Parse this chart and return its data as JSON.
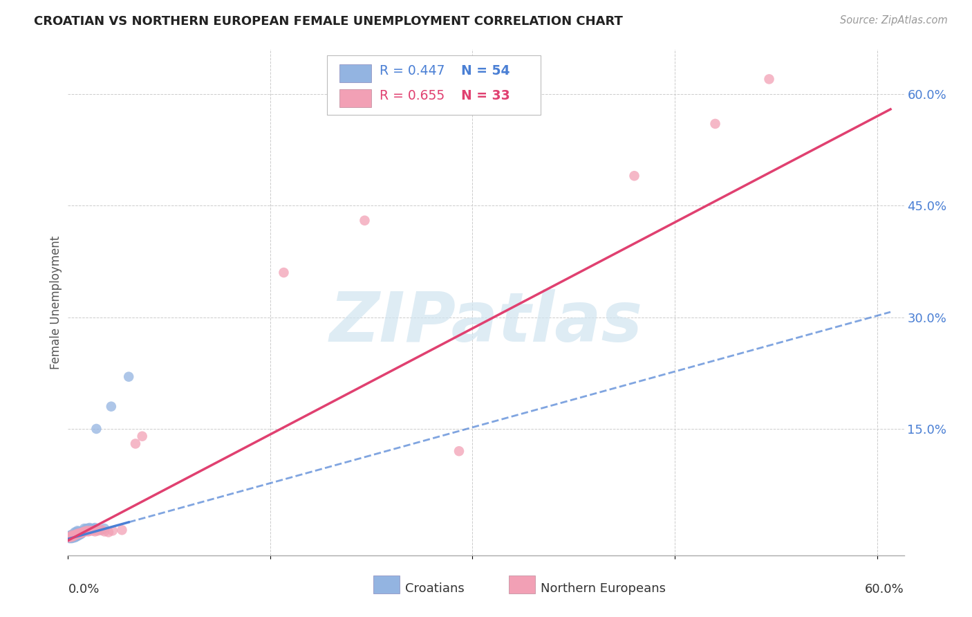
{
  "title": "CROATIAN VS NORTHERN EUROPEAN FEMALE UNEMPLOYMENT CORRELATION CHART",
  "source": "Source: ZipAtlas.com",
  "ylabel": "Female Unemployment",
  "right_yticks": [
    "60.0%",
    "45.0%",
    "30.0%",
    "15.0%"
  ],
  "right_ytick_vals": [
    0.6,
    0.45,
    0.3,
    0.15
  ],
  "xlim": [
    0.0,
    0.62
  ],
  "ylim": [
    -0.02,
    0.66
  ],
  "croatian_R": "0.447",
  "croatian_N": "54",
  "northern_R": "0.655",
  "northern_N": "33",
  "croatian_scatter_color": "#93b4e1",
  "northern_scatter_color": "#f2a0b5",
  "trendline_blue": "#4a7fd4",
  "trendline_pink": "#e04070",
  "background_color": "#ffffff",
  "grid_color": "#cccccc",
  "cro_x": [
    0.001,
    0.001,
    0.001,
    0.001,
    0.002,
    0.002,
    0.002,
    0.002,
    0.002,
    0.003,
    0.003,
    0.003,
    0.003,
    0.003,
    0.003,
    0.004,
    0.004,
    0.004,
    0.004,
    0.005,
    0.005,
    0.005,
    0.005,
    0.005,
    0.006,
    0.006,
    0.006,
    0.006,
    0.007,
    0.007,
    0.007,
    0.007,
    0.008,
    0.008,
    0.008,
    0.009,
    0.009,
    0.01,
    0.01,
    0.011,
    0.012,
    0.012,
    0.013,
    0.014,
    0.015,
    0.016,
    0.017,
    0.019,
    0.02,
    0.021,
    0.024,
    0.027,
    0.032,
    0.045
  ],
  "cro_y": [
    0.003,
    0.004,
    0.005,
    0.006,
    0.003,
    0.004,
    0.005,
    0.006,
    0.007,
    0.003,
    0.004,
    0.005,
    0.006,
    0.007,
    0.008,
    0.004,
    0.005,
    0.006,
    0.007,
    0.004,
    0.005,
    0.007,
    0.009,
    0.011,
    0.005,
    0.007,
    0.009,
    0.011,
    0.006,
    0.008,
    0.01,
    0.013,
    0.007,
    0.009,
    0.012,
    0.008,
    0.01,
    0.009,
    0.012,
    0.012,
    0.013,
    0.016,
    0.015,
    0.016,
    0.016,
    0.017,
    0.016,
    0.016,
    0.017,
    0.15,
    0.014,
    0.016,
    0.18,
    0.22
  ],
  "nor_x": [
    0.001,
    0.002,
    0.003,
    0.003,
    0.004,
    0.005,
    0.006,
    0.007,
    0.008,
    0.009,
    0.01,
    0.011,
    0.012,
    0.013,
    0.014,
    0.015,
    0.016,
    0.018,
    0.02,
    0.022,
    0.025,
    0.027,
    0.03,
    0.033,
    0.04,
    0.05,
    0.055,
    0.16,
    0.22,
    0.29,
    0.42,
    0.48,
    0.52
  ],
  "nor_y": [
    0.004,
    0.005,
    0.005,
    0.007,
    0.006,
    0.007,
    0.008,
    0.009,
    0.009,
    0.01,
    0.01,
    0.011,
    0.012,
    0.012,
    0.013,
    0.012,
    0.013,
    0.013,
    0.012,
    0.013,
    0.014,
    0.012,
    0.011,
    0.013,
    0.014,
    0.13,
    0.14,
    0.36,
    0.43,
    0.12,
    0.49,
    0.56,
    0.62
  ],
  "watermark_text": "ZIPatlas",
  "watermark_color": "#d0e4f0"
}
